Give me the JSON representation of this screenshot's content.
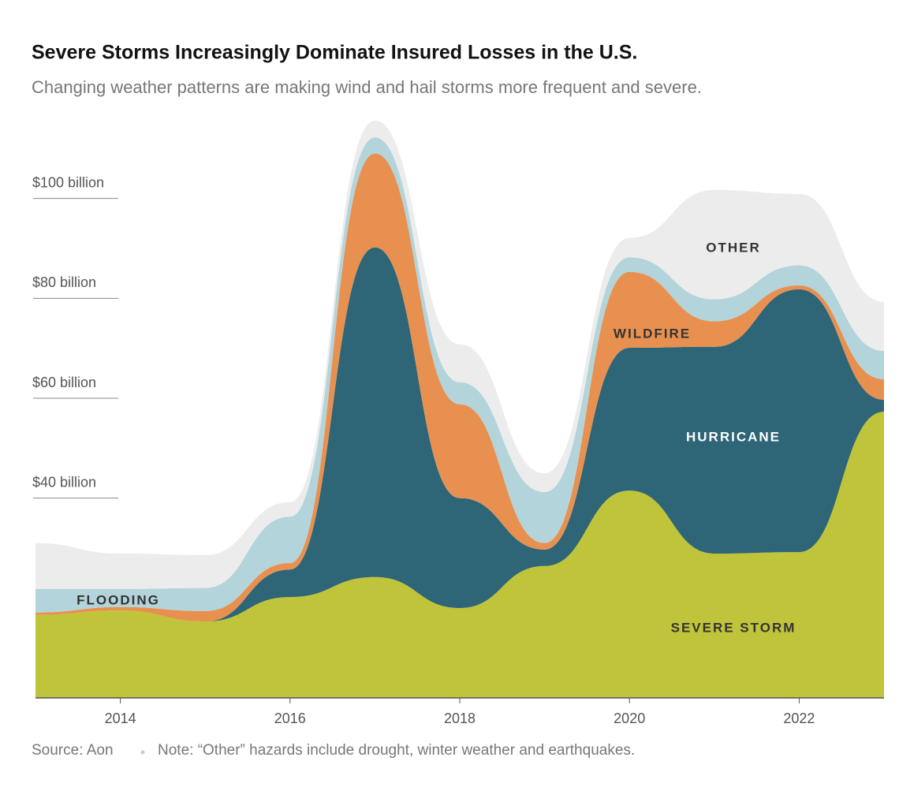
{
  "chart_data": {
    "type": "stacked_area",
    "title": "Severe Storms Increasingly Dominate Insured Losses in the U.S.",
    "subtitle": "Changing weather patterns are making wind and hail storms more frequent and severe.",
    "source": "Source: Aon",
    "note": "Note: “Other” hazards include drought, winter weather and earthquakes.",
    "x": [
      2013,
      2014,
      2015,
      2016,
      2017,
      2018,
      2019,
      2020,
      2021,
      2022,
      2023
    ],
    "xlim": [
      2013,
      2023
    ],
    "xticks": [
      2014,
      2016,
      2018,
      2020,
      2022
    ],
    "ylim": [
      0,
      120
    ],
    "yticks": [
      {
        "value": 40,
        "label": "$40 billion"
      },
      {
        "value": 60,
        "label": "$60 billion"
      },
      {
        "value": 80,
        "label": "$80 billion"
      },
      {
        "value": 100,
        "label": "$100 billion"
      }
    ],
    "series": [
      {
        "name": "SEVERE STORM",
        "color": "#c0c43a",
        "values": [
          16.6,
          17.5,
          15.3,
          20.2,
          24.2,
          18.0,
          26.4,
          41.5,
          28.9,
          29.2,
          57.3
        ]
      },
      {
        "name": "HURRICANE",
        "color": "#2e6577",
        "values": [
          0,
          0,
          0,
          5.5,
          66.0,
          22.0,
          3.3,
          28.6,
          41.4,
          52.6,
          2.4
        ]
      },
      {
        "name": "WILDFIRE",
        "color": "#e8904f",
        "values": [
          0.5,
          0.7,
          2.1,
          1.3,
          18.8,
          18.8,
          1.3,
          15.2,
          5.1,
          0.8,
          4.1
        ]
      },
      {
        "name": "FLOODING",
        "color": "#b2d4da",
        "values": [
          4.7,
          3.6,
          4.6,
          9.3,
          3.2,
          4.4,
          10.2,
          2.9,
          4.4,
          4.0,
          5.7
        ]
      },
      {
        "name": "OTHER",
        "color": "#ececec",
        "values": [
          9.2,
          7.1,
          6.6,
          2.9,
          3.4,
          7.6,
          3.8,
          3.9,
          21.9,
          14.3,
          9.8
        ]
      }
    ]
  }
}
